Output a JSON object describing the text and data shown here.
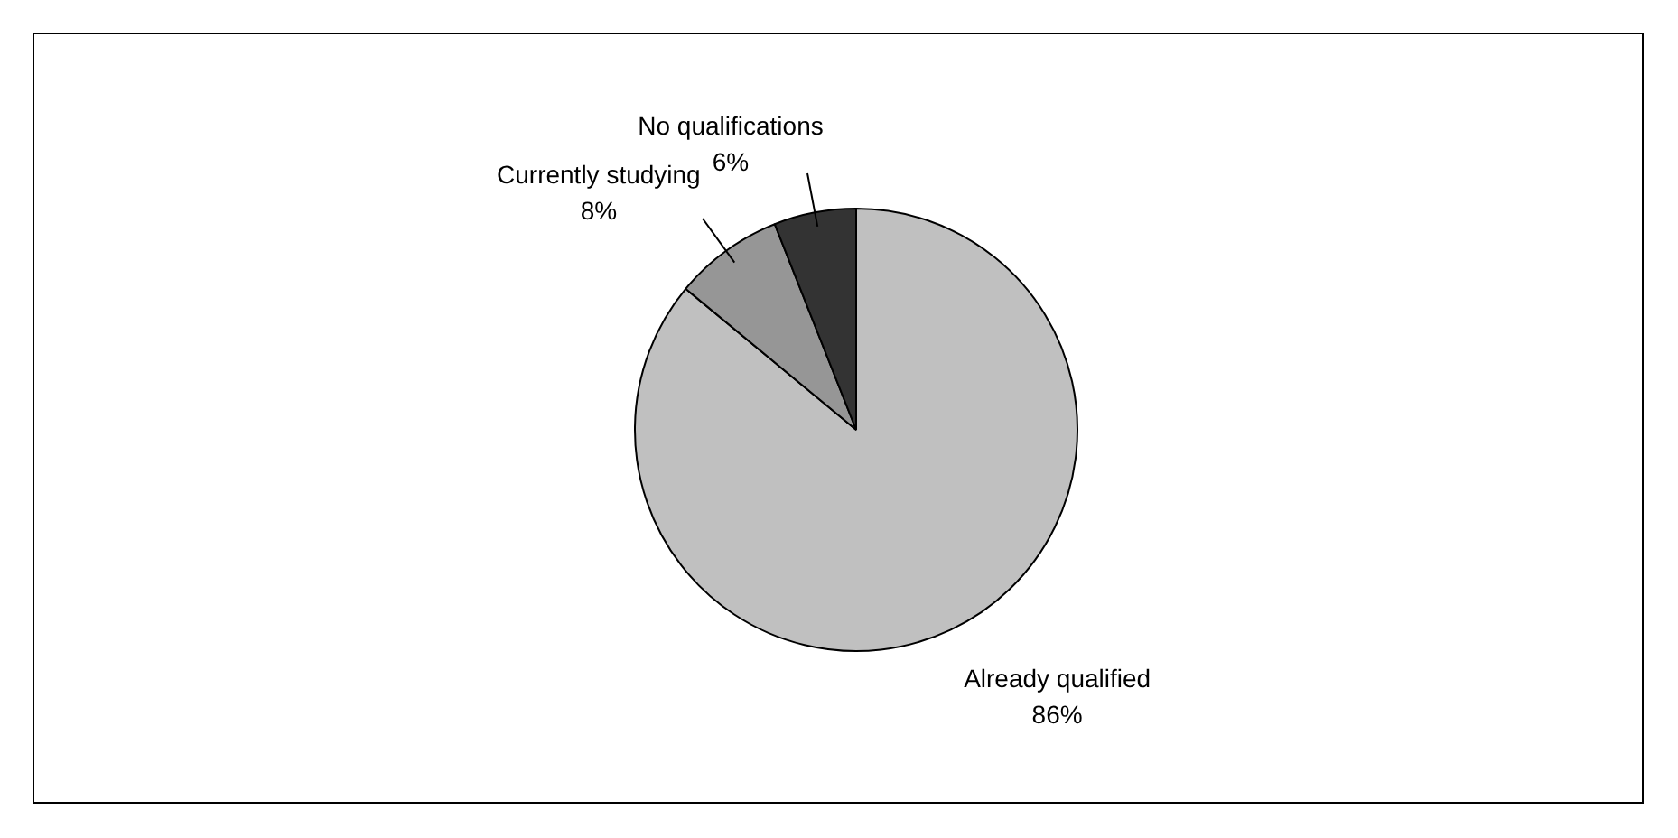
{
  "chart_data": {
    "type": "pie",
    "categories": [
      "Already qualified",
      "Currently studying",
      "No qualifications"
    ],
    "values": [
      86,
      8,
      6
    ],
    "colors": [
      "#c0c0c0",
      "#969696",
      "#333333"
    ],
    "value_labels": [
      "86%",
      "8%",
      "6%"
    ],
    "legend": false
  }
}
